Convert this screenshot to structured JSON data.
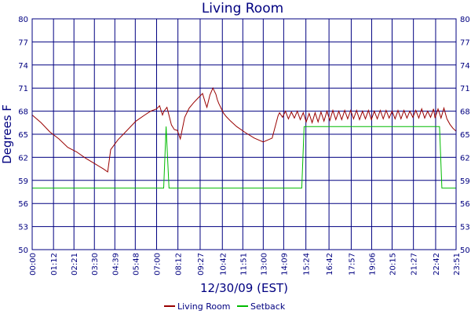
{
  "colors": {
    "text": "#000080",
    "grid": "#000080",
    "living_room": "#990000",
    "setback": "#00bb00",
    "background": "#ffffff"
  },
  "chart_data": {
    "type": "line",
    "title": "Living Room",
    "xlabel": "12/30/09 (EST)",
    "ylabel": "Degrees F",
    "ylim": [
      50,
      80
    ],
    "yticks": [
      50,
      53,
      56,
      59,
      62,
      65,
      68,
      71,
      74,
      77,
      80
    ],
    "xlim": [
      0,
      1431
    ],
    "xticks_minutes": [
      0,
      72,
      141,
      210,
      279,
      348,
      420,
      492,
      567,
      642,
      711,
      780,
      849,
      924,
      1002,
      1077,
      1146,
      1215,
      1287,
      1362,
      1431
    ],
    "xtick_labels": [
      "00:00",
      "01:12",
      "02:21",
      "03:30",
      "04:39",
      "05:48",
      "07:00",
      "08:12",
      "09:27",
      "10:42",
      "11:51",
      "13:00",
      "14:09",
      "15:24",
      "16:42",
      "17:57",
      "19:06",
      "20:15",
      "21:27",
      "22:42",
      "23:51"
    ],
    "grid": true,
    "legend_position": "bottom",
    "series": [
      {
        "name": "Living Room",
        "color": "#990000",
        "x": [
          0,
          30,
          60,
          90,
          120,
          150,
          180,
          210,
          240,
          255,
          265,
          290,
          320,
          350,
          380,
          400,
          420,
          430,
          440,
          445,
          455,
          470,
          480,
          490,
          500,
          515,
          530,
          545,
          560,
          575,
          585,
          590,
          600,
          610,
          620,
          625,
          630,
          635,
          640,
          645,
          655,
          670,
          690,
          720,
          750,
          780,
          810,
          830,
          835,
          845,
          855,
          865,
          875,
          885,
          895,
          905,
          915,
          925,
          935,
          945,
          955,
          965,
          975,
          985,
          995,
          1005,
          1015,
          1025,
          1035,
          1045,
          1055,
          1065,
          1075,
          1085,
          1095,
          1105,
          1115,
          1125,
          1135,
          1145,
          1155,
          1165,
          1175,
          1185,
          1195,
          1205,
          1215,
          1225,
          1235,
          1245,
          1255,
          1265,
          1275,
          1285,
          1295,
          1305,
          1315,
          1325,
          1335,
          1345,
          1355,
          1360,
          1370,
          1380,
          1390,
          1400,
          1410,
          1420,
          1431
        ],
        "values": [
          67.5,
          66.5,
          65.3,
          64.4,
          63.3,
          62.7,
          61.9,
          61.2,
          60.5,
          60.1,
          63.0,
          64.3,
          65.5,
          66.7,
          67.5,
          68.0,
          68.3,
          68.7,
          67.5,
          68.0,
          68.5,
          66.2,
          65.6,
          65.5,
          64.4,
          67.2,
          68.4,
          69.1,
          69.7,
          70.3,
          69.0,
          68.5,
          70.1,
          71.0,
          70.2,
          69.5,
          69.0,
          68.6,
          68.2,
          67.8,
          67.3,
          66.7,
          66.0,
          65.2,
          64.5,
          64.0,
          64.5,
          67.4,
          67.8,
          67.2,
          68.0,
          67.0,
          67.9,
          67.1,
          68.0,
          66.9,
          67.8,
          66.6,
          67.7,
          66.5,
          67.8,
          66.6,
          67.9,
          66.7,
          68.0,
          66.8,
          68.1,
          66.9,
          68.0,
          66.9,
          68.1,
          67.0,
          68.1,
          67.0,
          68.1,
          66.9,
          68.0,
          67.0,
          68.1,
          66.9,
          68.0,
          67.0,
          68.1,
          67.0,
          68.1,
          67.1,
          68.0,
          67.0,
          68.1,
          67.0,
          68.1,
          67.1,
          68.0,
          67.2,
          68.1,
          67.1,
          68.3,
          67.1,
          68.0,
          67.2,
          68.3,
          67.1,
          68.3,
          67.1,
          68.4,
          67.0,
          66.3,
          65.8,
          65.4
        ]
      },
      {
        "name": "Setback",
        "color": "#00bb00",
        "x": [
          0,
          444,
          444,
          452,
          452,
          462,
          462,
          910,
          910,
          918,
          918,
          1375,
          1375,
          1383,
          1383,
          1431
        ],
        "values": [
          58,
          58,
          58,
          66,
          66,
          58,
          58,
          58,
          58,
          66,
          66,
          66,
          66,
          58,
          58,
          58
        ]
      }
    ]
  }
}
